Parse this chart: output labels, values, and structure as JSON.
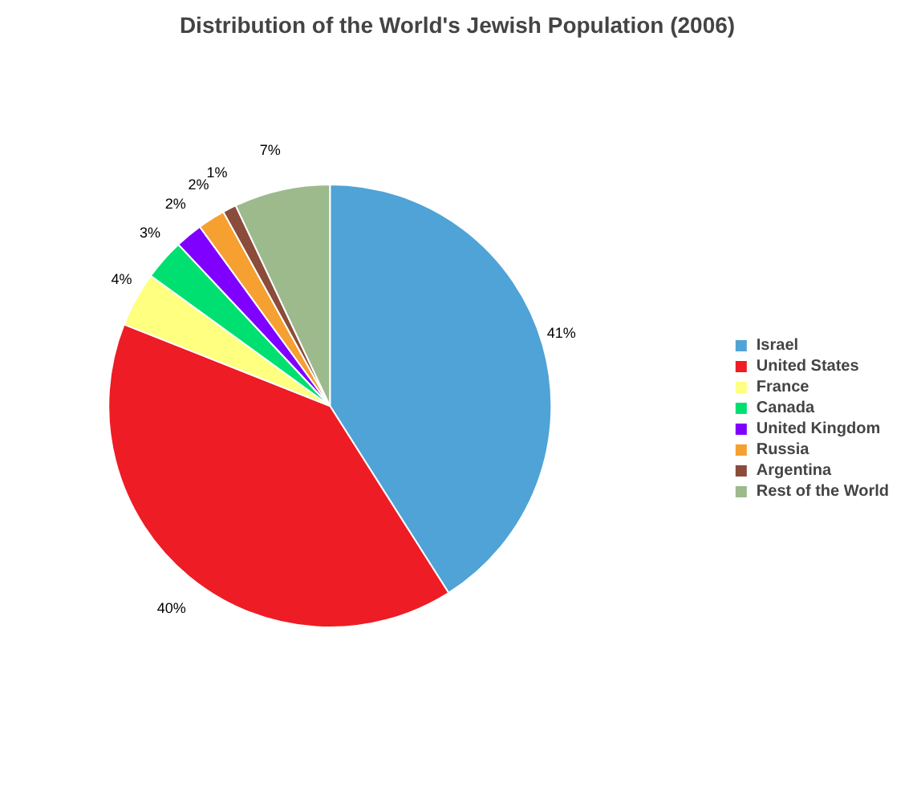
{
  "chart_data": {
    "type": "pie",
    "title": "Distribution of the World's Jewish Population (2006)",
    "categories": [
      "Israel",
      "United States",
      "France",
      "Canada",
      "United Kingdom",
      "Russia",
      "Argentina",
      "Rest of the World"
    ],
    "values": [
      41,
      40,
      4,
      3,
      2,
      2,
      1,
      7
    ],
    "colors": [
      "#4fa3d6",
      "#ee1c24",
      "#ffff80",
      "#00e070",
      "#7f00ff",
      "#f5a030",
      "#8b4c3b",
      "#9cba8c"
    ],
    "value_labels": [
      "41%",
      "40%",
      "4%",
      "3%",
      "2%",
      "2%",
      "1%",
      "7%"
    ],
    "legend": "right"
  }
}
